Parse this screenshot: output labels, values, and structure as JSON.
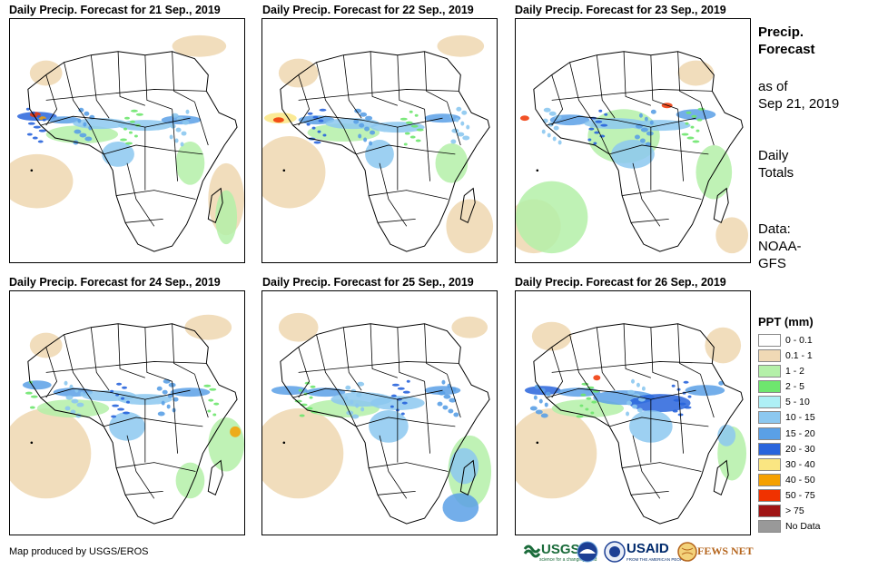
{
  "panels": [
    {
      "title": "Daily Precip. Forecast for 21 Sep., 2019"
    },
    {
      "title": "Daily Precip. Forecast for 22 Sep., 2019"
    },
    {
      "title": "Daily Precip. Forecast for 23 Sep., 2019"
    },
    {
      "title": "Daily Precip. Forecast for 24 Sep., 2019"
    },
    {
      "title": "Daily Precip. Forecast for 25 Sep., 2019"
    },
    {
      "title": "Daily Precip. Forecast for 26 Sep., 2019"
    }
  ],
  "sidebar": {
    "heading_line1": "Precip.",
    "heading_line2": "Forecast",
    "asof_line1": "as of",
    "asof_line2": "Sep 21, 2019",
    "totals_line1": "Daily",
    "totals_line2": "Totals",
    "source_line1": "Data:",
    "source_line2": "NOAA-",
    "source_line3": "GFS"
  },
  "legend": {
    "title": "PPT (mm)",
    "items": [
      {
        "label": "0 - 0.1",
        "color": "#ffffff"
      },
      {
        "label": "0.1 - 1",
        "color": "#f0d9b5"
      },
      {
        "label": "1 - 2",
        "color": "#b4f0a8"
      },
      {
        "label": "2 - 5",
        "color": "#6ee66e"
      },
      {
        "label": "5 - 10",
        "color": "#aef0f5"
      },
      {
        "label": "10 - 15",
        "color": "#8cc8f0"
      },
      {
        "label": "15 - 20",
        "color": "#5aa0e6"
      },
      {
        "label": "20 - 30",
        "color": "#2864dc"
      },
      {
        "label": "30 - 40",
        "color": "#fae682"
      },
      {
        "label": "40 - 50",
        "color": "#f5a000"
      },
      {
        "label": "50 - 75",
        "color": "#f03200"
      },
      {
        "label": "> 75",
        "color": "#a01414"
      },
      {
        "label": "No Data",
        "color": "#999999"
      }
    ]
  },
  "footer": {
    "credit": "Map produced by USGS/EROS",
    "logos": {
      "usgs": "USGS",
      "usgs_tagline": "science for a changing world",
      "usaid": "USAID",
      "usaid_tagline": "FROM THE AMERICAN PEOPLE",
      "fewsnet": "FEWS NET"
    }
  }
}
